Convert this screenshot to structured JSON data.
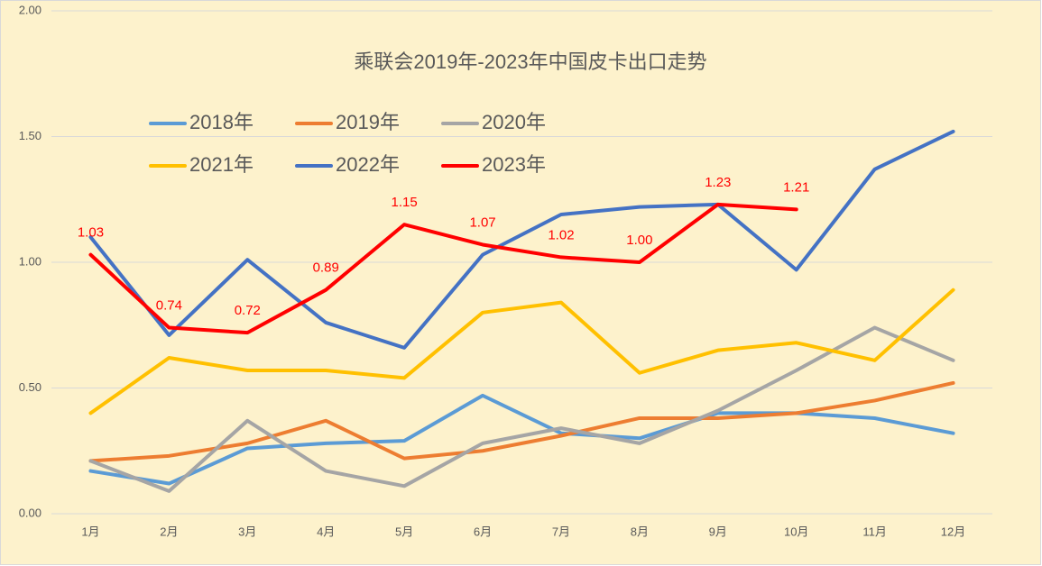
{
  "chart_data": {
    "type": "line",
    "title": "乘联会2019年-2023年中国皮卡出口走势",
    "categories": [
      "1月",
      "2月",
      "3月",
      "4月",
      "5月",
      "6月",
      "7月",
      "8月",
      "9月",
      "10月",
      "11月",
      "12月"
    ],
    "series": [
      {
        "name": "2018年",
        "color": "#5b9bd5",
        "values": [
          0.17,
          0.12,
          0.26,
          0.28,
          0.29,
          0.47,
          0.32,
          0.3,
          0.4,
          0.4,
          0.38,
          0.32
        ]
      },
      {
        "name": "2019年",
        "color": "#ed7d31",
        "values": [
          0.21,
          0.23,
          0.28,
          0.37,
          0.22,
          0.25,
          0.31,
          0.38,
          0.38,
          0.4,
          0.45,
          0.52
        ]
      },
      {
        "name": "2020年",
        "color": "#a5a5a5",
        "values": [
          0.21,
          0.09,
          0.37,
          0.17,
          0.11,
          0.28,
          0.34,
          0.28,
          0.41,
          0.57,
          0.74,
          0.61
        ]
      },
      {
        "name": "2021年",
        "color": "#ffc000",
        "values": [
          0.4,
          0.62,
          0.57,
          0.57,
          0.54,
          0.8,
          0.84,
          0.56,
          0.65,
          0.68,
          0.61,
          0.89
        ]
      },
      {
        "name": "2022年",
        "color": "#4472c4",
        "values": [
          1.1,
          0.71,
          1.01,
          0.76,
          0.66,
          1.03,
          1.19,
          1.22,
          1.23,
          0.97,
          1.37,
          1.52
        ]
      },
      {
        "name": "2023年",
        "color": "#ff0000",
        "values": [
          1.03,
          0.74,
          0.72,
          0.89,
          1.15,
          1.07,
          1.02,
          1.0,
          1.23,
          1.21,
          null,
          null
        ],
        "value_labels": [
          "1.03",
          "0.74",
          "0.72",
          "0.89",
          "1.15",
          "1.07",
          "1.02",
          "1.00",
          "1.23",
          "1.21",
          null,
          null
        ]
      }
    ],
    "ylim": [
      0,
      2
    ],
    "yticks": [
      {
        "value": 0,
        "label": "0.00"
      },
      {
        "value": 0.5,
        "label": "0.50"
      },
      {
        "value": 1,
        "label": "1.00"
      },
      {
        "value": 1.5,
        "label": "1.50"
      },
      {
        "value": 2,
        "label": "2.00"
      }
    ],
    "grid": true,
    "legend": "top"
  }
}
